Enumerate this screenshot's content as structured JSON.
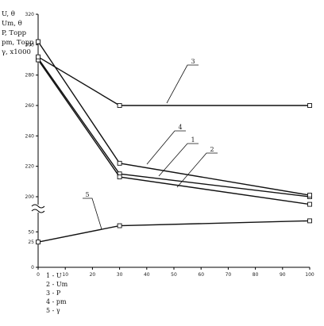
{
  "chart_data": {
    "type": "line",
    "y_label_lines": [
      "U, θ",
      "Um, θ",
      "P, Торр",
      "pm, Торр",
      "γ, x1000"
    ],
    "x_ticks": [
      "0",
      "10",
      "20",
      "30",
      "40",
      "50",
      "60",
      "70",
      "80",
      "90",
      "100"
    ],
    "y_ticks_upper": [
      "320",
      "300",
      "280",
      "260",
      "240",
      "220",
      "200"
    ],
    "y_ticks_lower": [
      "50",
      "25",
      "0"
    ],
    "xlim": [
      0,
      100
    ],
    "ylim_upper": [
      200,
      320
    ],
    "ylim_lower": [
      0,
      70
    ],
    "axis_break": "between 200 and 50",
    "grid": false,
    "series": [
      {
        "label": "1",
        "scale": "upper",
        "x": [
          0,
          30,
          100
        ],
        "y": [
          291,
          215,
          200
        ]
      },
      {
        "label": "2",
        "scale": "upper",
        "x": [
          0,
          30,
          100
        ],
        "y": [
          290,
          213,
          195
        ]
      },
      {
        "label": "3",
        "scale": "upper",
        "x": [
          0,
          30,
          100
        ],
        "y": [
          292,
          260,
          260
        ]
      },
      {
        "label": "4",
        "scale": "upper",
        "x": [
          0,
          30,
          100
        ],
        "y": [
          302,
          222,
          201
        ]
      },
      {
        "label": "5",
        "scale": "lower",
        "x": [
          0,
          30,
          100
        ],
        "y": [
          25,
          65,
          77
        ]
      }
    ],
    "legend": [
      "1 -  U",
      "2 -  Um",
      "3 -  P",
      "4 -  pm",
      "5 -  γ"
    ],
    "legend_position": "bottom-left"
  }
}
